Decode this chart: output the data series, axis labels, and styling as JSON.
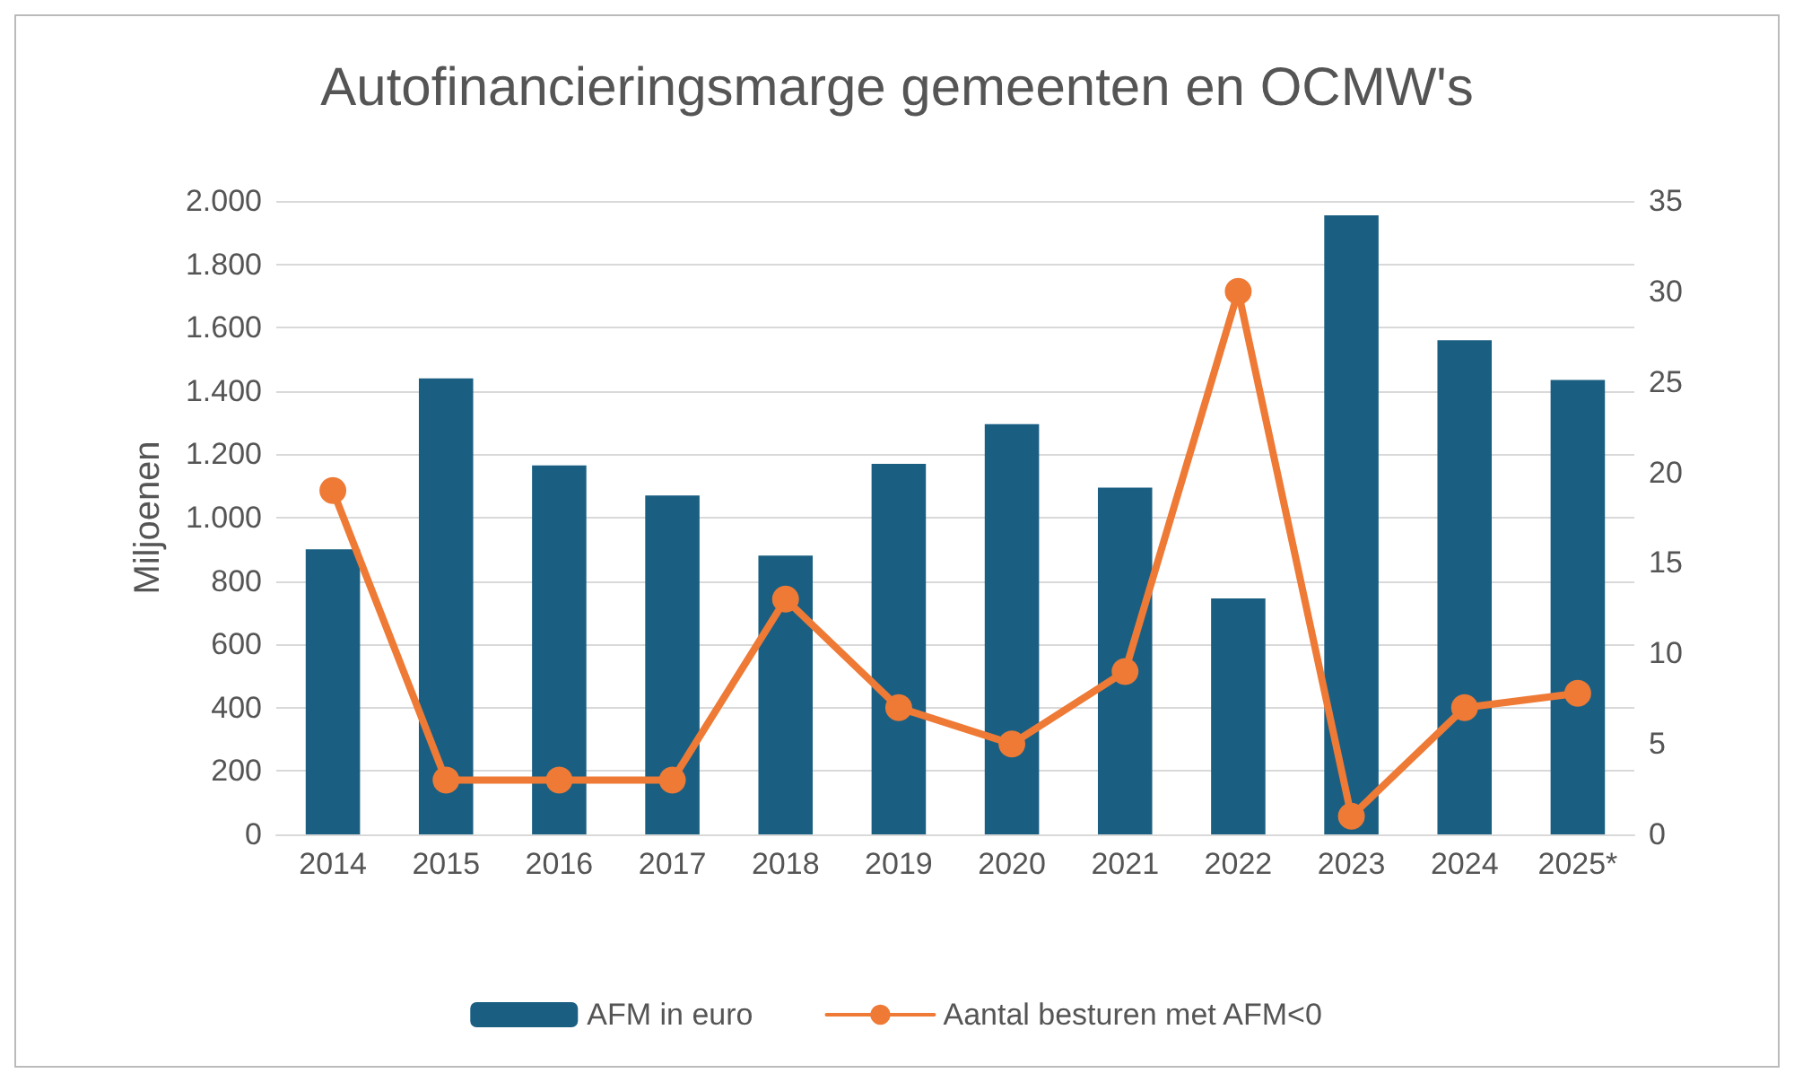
{
  "chart_data": {
    "type": "bar",
    "title": "Autofinancieringsmarge gemeenten en OCMW's",
    "ylabel": "Miljoenen",
    "categories": [
      "2014",
      "2015",
      "2016",
      "2017",
      "2018",
      "2019",
      "2020",
      "2021",
      "2022",
      "2023",
      "2024",
      "2025*"
    ],
    "series": [
      {
        "name": "AFM in euro",
        "color": "#1a5f82",
        "values": [
          900,
          1440,
          1165,
          1070,
          880,
          1170,
          1295,
          1095,
          745,
          1955,
          1560,
          1435
        ]
      },
      {
        "name": "Aantal besturen met AFM<0",
        "type": "line",
        "axis": "y2",
        "color": "#ee7a36",
        "values": [
          19,
          3,
          3,
          3,
          13,
          7,
          5,
          9,
          30,
          1,
          7,
          7.8
        ]
      }
    ],
    "ylim": [
      0,
      2000
    ],
    "yticks": [
      0,
      200,
      400,
      600,
      800,
      {
        "value": 1000,
        "label": "1.000"
      },
      {
        "value": 1200,
        "label": "1.200"
      },
      {
        "value": 1400,
        "label": "1.400"
      },
      {
        "value": 1600,
        "label": "1.600"
      },
      {
        "value": 1800,
        "label": "1.800"
      },
      {
        "value": 2000,
        "label": "2.000"
      }
    ],
    "y2lim": [
      0,
      35
    ],
    "y2ticks": [
      0,
      5,
      10,
      15,
      20,
      25,
      30,
      35
    ],
    "grid": "y",
    "legend": "bottom",
    "marker": "circle",
    "line_style": "solid"
  }
}
